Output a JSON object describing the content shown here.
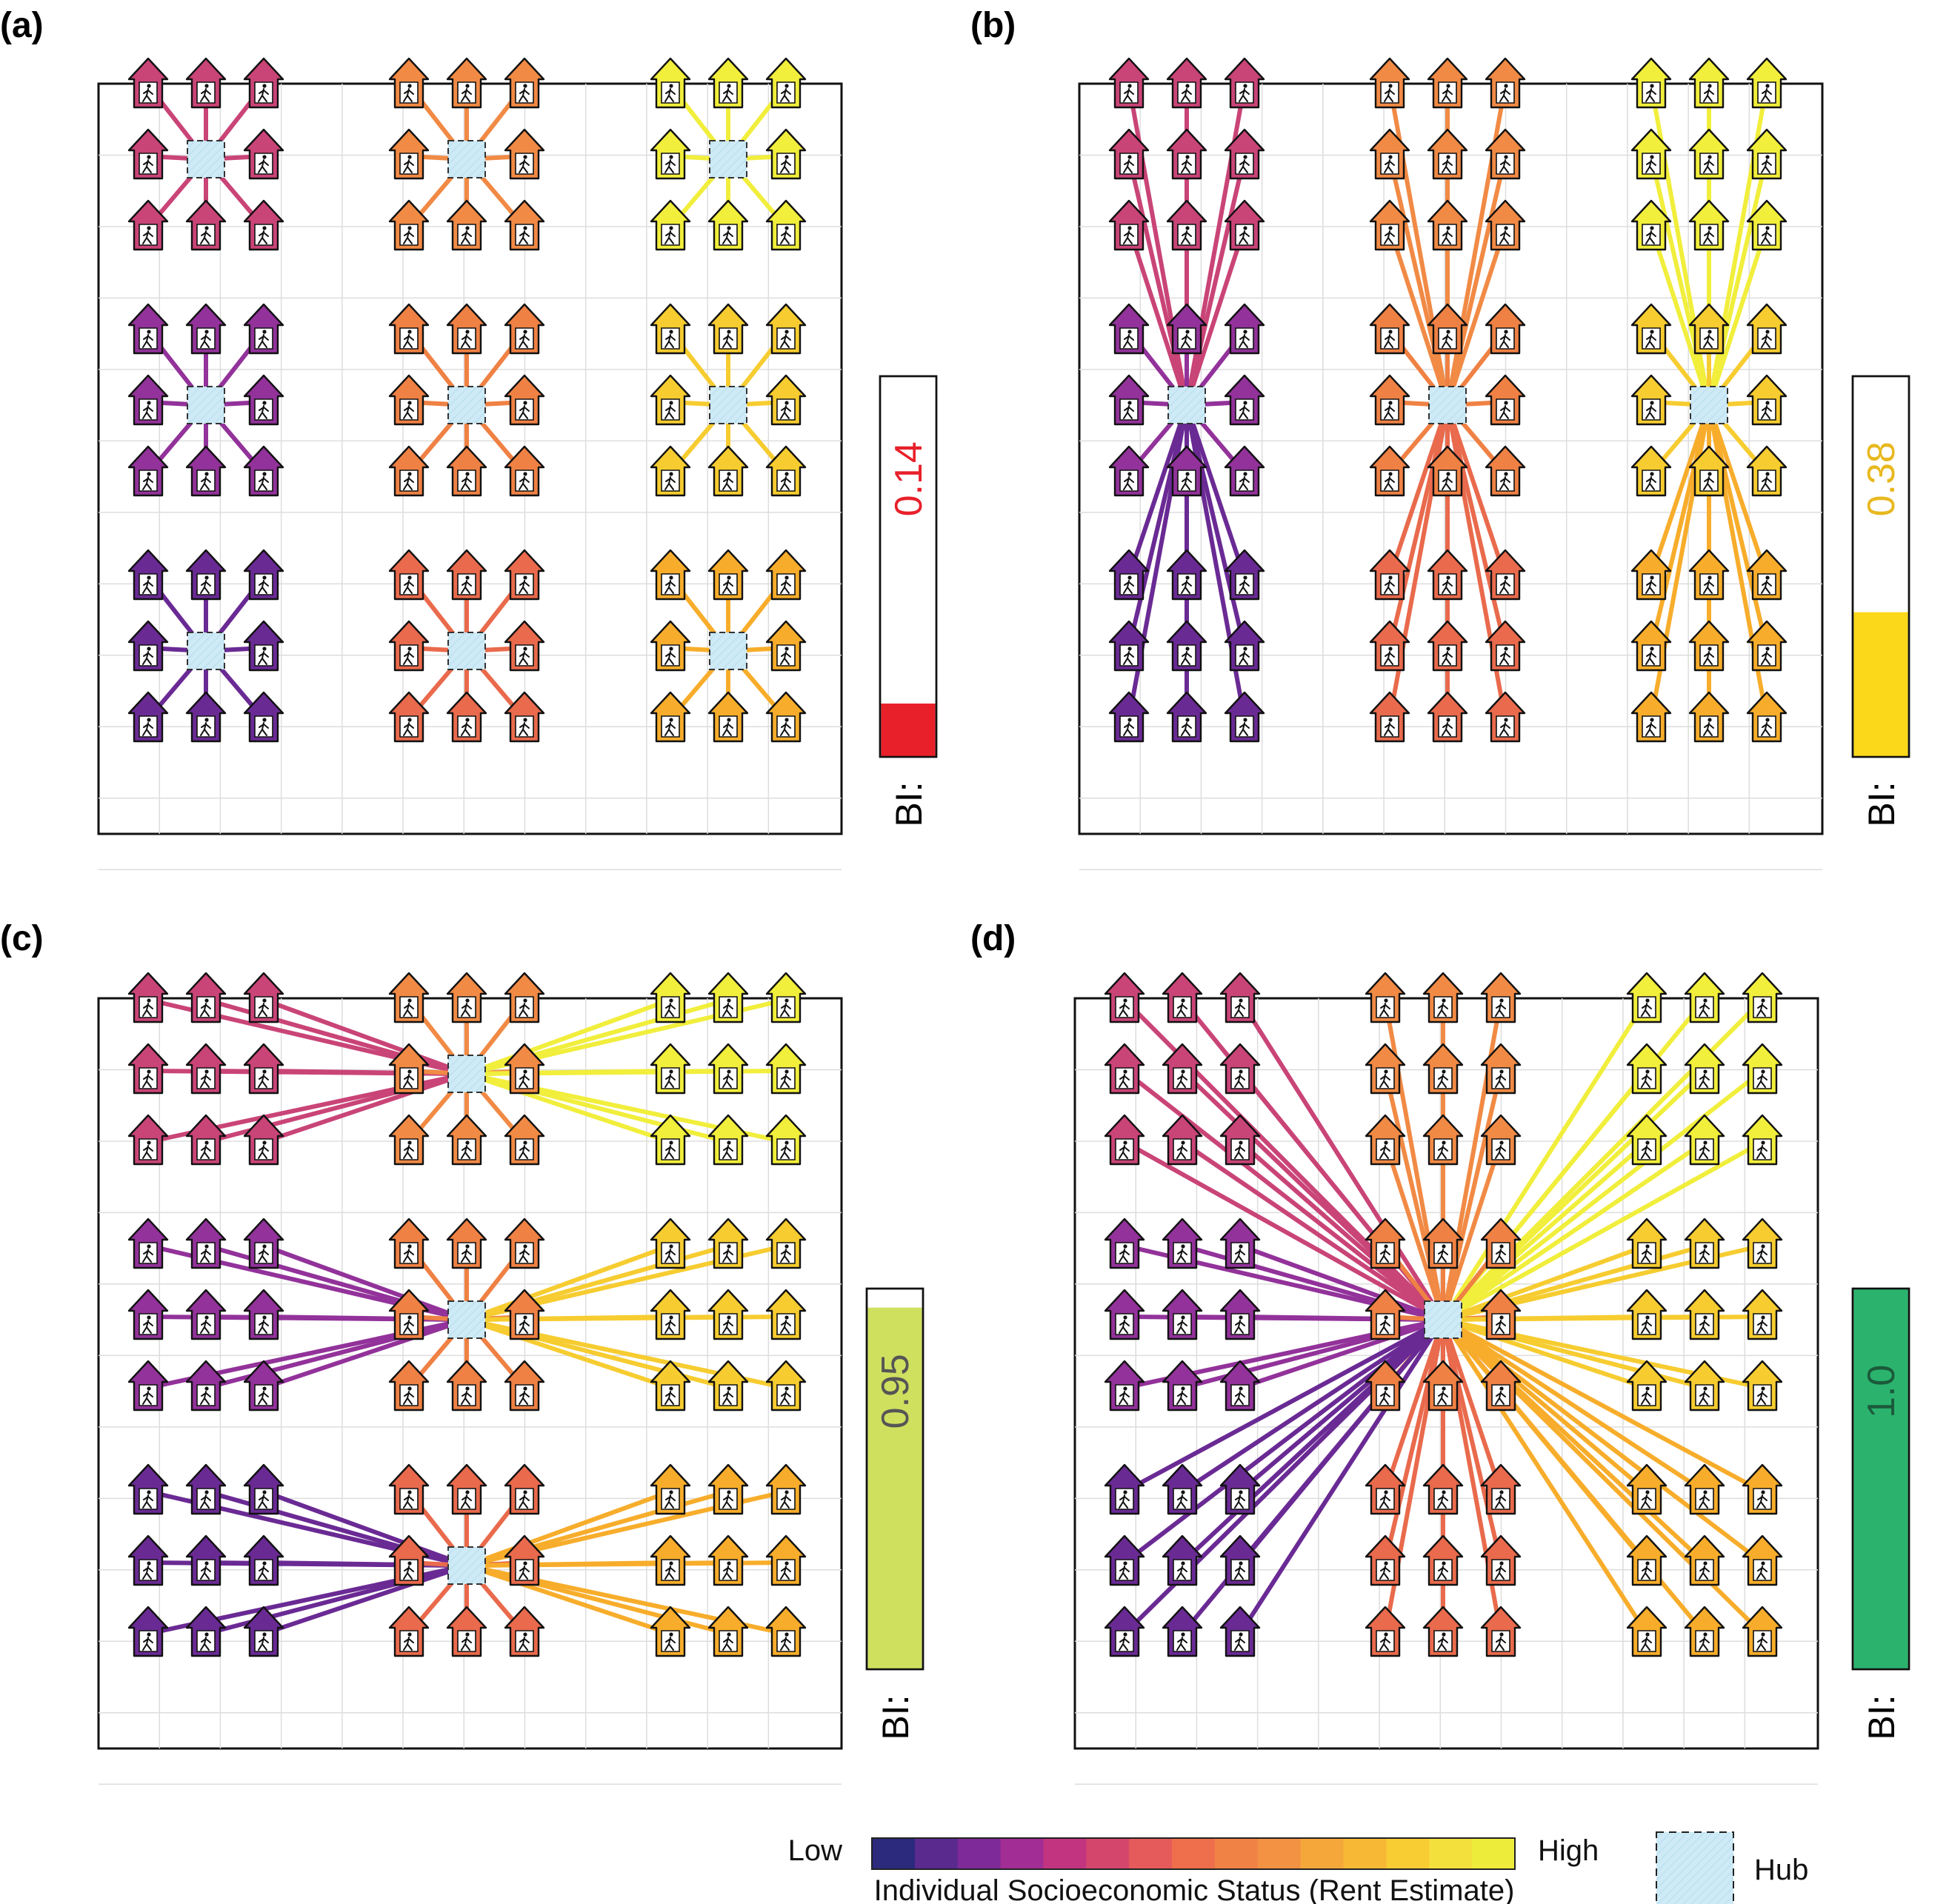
{
  "panels": [
    {
      "label": "(a)",
      "mode": "local",
      "bi": {
        "label": "BI:",
        "value": "0.14",
        "fraction": 0.14,
        "fill": "#e8202a",
        "text_color": "#e8202a"
      }
    },
    {
      "label": "(b)",
      "mode": "column",
      "bi": {
        "label": "BI:",
        "value": "0.38",
        "fraction": 0.38,
        "fill": "#fbd819",
        "text_color": "#e8b81e"
      }
    },
    {
      "label": "(c)",
      "mode": "row",
      "bi": {
        "label": "BI:",
        "value": "0.95",
        "fraction": 0.95,
        "fill": "#cfe05f",
        "text_color": "#555555"
      }
    },
    {
      "label": "(d)",
      "mode": "global",
      "bi": {
        "label": "BI:",
        "value": "1.0",
        "fraction": 1.0,
        "fill": "#2bb36e",
        "text_color": "#1a5a3a"
      }
    }
  ],
  "block_colors": [
    [
      "#c94477",
      "#f18a45",
      "#f1ee3c"
    ],
    [
      "#92329a",
      "#ef8144",
      "#f6cc30"
    ],
    [
      "#6a2a94",
      "#e96a4c",
      "#f7ad2b"
    ]
  ],
  "colorbar": {
    "low_label": "Low",
    "high_label": "High",
    "title": "Individual Socioeconomic Status (Rent Estimate)",
    "stops": [
      "#2b2a7c",
      "#5a2a8f",
      "#7e2a98",
      "#a22d94",
      "#c2347f",
      "#d5466d",
      "#e55b5b",
      "#ef6f4c",
      "#f18246",
      "#f49243",
      "#f6a73a",
      "#f7b835",
      "#f8cc33",
      "#f4e03c",
      "#eeec3a"
    ]
  },
  "hub_legend": {
    "label": "Hub",
    "fill": "#cdeaf6"
  }
}
